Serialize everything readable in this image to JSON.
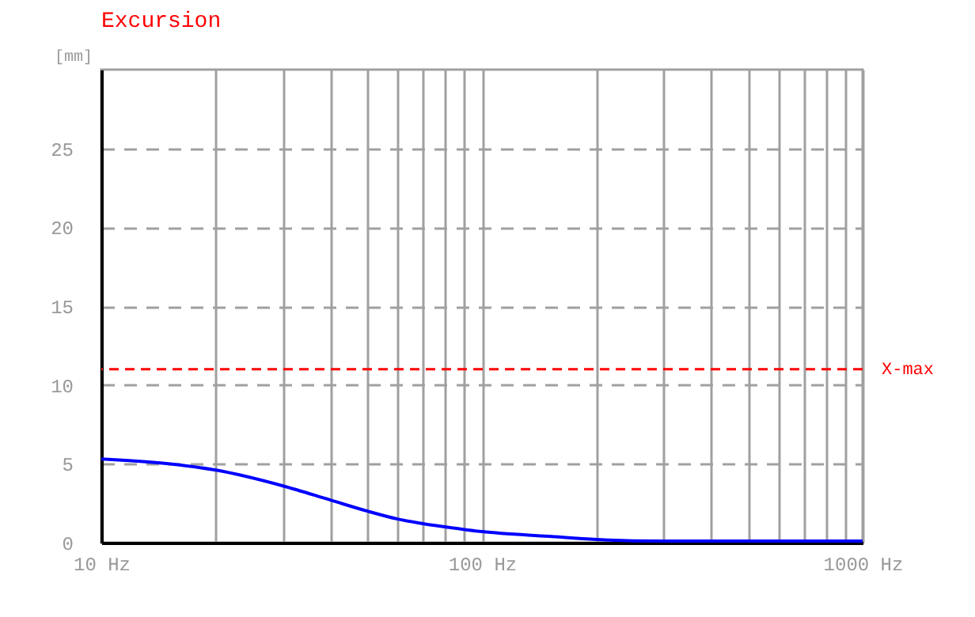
{
  "chart_data": {
    "type": "line",
    "title": "Excursion",
    "ylabel": "[mm]",
    "x": [
      10,
      15,
      20,
      30,
      40,
      50,
      60,
      70,
      80,
      100,
      150,
      200,
      300,
      500,
      1000
    ],
    "series": [
      {
        "color": "#0000ff",
        "values": [
          5.3,
          5.0,
          4.6,
          3.6,
          2.7,
          2.0,
          1.5,
          1.2,
          1.0,
          0.7,
          0.4,
          0.2,
          0.1,
          0.1,
          0.1
        ]
      }
    ],
    "log": "x",
    "xlim": [
      10,
      1000
    ],
    "ylim": [
      0,
      30
    ],
    "xticks": [
      {
        "value": 10,
        "label": "10 Hz"
      },
      {
        "value": 20,
        "label": null
      },
      {
        "value": 30,
        "label": null
      },
      {
        "value": 40,
        "label": null
      },
      {
        "value": 50,
        "label": null
      },
      {
        "value": 60,
        "label": null
      },
      {
        "value": 70,
        "label": null
      },
      {
        "value": 80,
        "label": null
      },
      {
        "value": 90,
        "label": null
      },
      {
        "value": 100,
        "label": "100 Hz"
      },
      {
        "value": 200,
        "label": null
      },
      {
        "value": 300,
        "label": null
      },
      {
        "value": 400,
        "label": null
      },
      {
        "value": 500,
        "label": null
      },
      {
        "value": 600,
        "label": null
      },
      {
        "value": 700,
        "label": null
      },
      {
        "value": 800,
        "label": null
      },
      {
        "value": 900,
        "label": null
      },
      {
        "value": 1000,
        "label": "1000 Hz"
      }
    ],
    "yticks": [
      0,
      5,
      10,
      15,
      20,
      25
    ],
    "grid": true,
    "marker": "none",
    "line_style": "solid",
    "ref_lines": [
      {
        "axis": "y",
        "value": 11,
        "label": "X-max",
        "color": "#ff0000",
        "line_style": "dashed"
      }
    ]
  }
}
